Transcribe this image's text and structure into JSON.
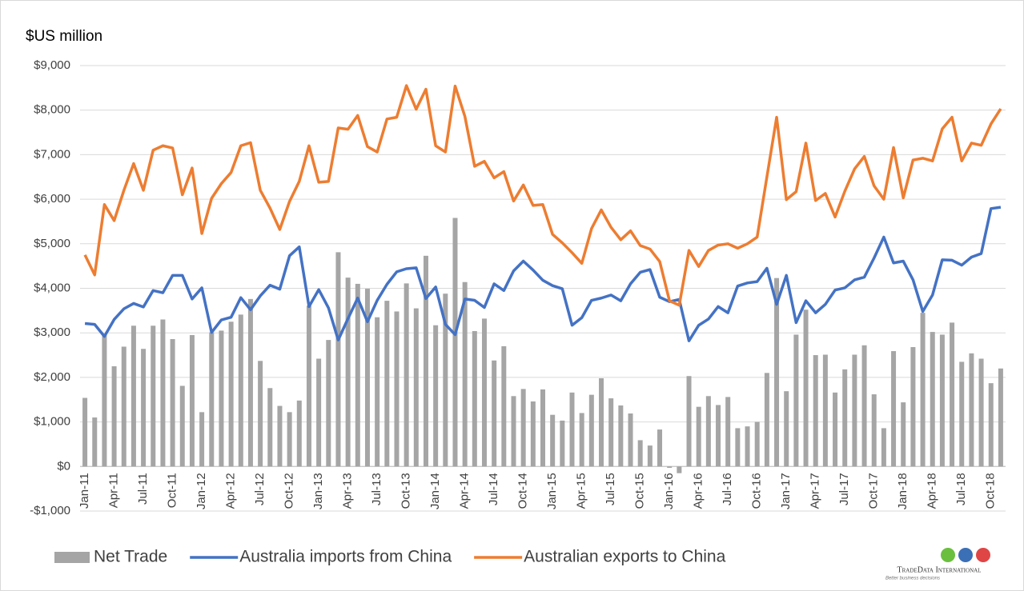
{
  "chart_data": {
    "type": "combo",
    "y_axis_label": "$US million",
    "categories": [
      "Jan-11",
      null,
      null,
      "Apr-11",
      null,
      null,
      "Jul-11",
      null,
      null,
      "Oct-11",
      null,
      null,
      "Jan-12",
      null,
      null,
      "Apr-12",
      null,
      null,
      "Jul-12",
      null,
      null,
      "Oct-12",
      null,
      null,
      "Jan-13",
      null,
      null,
      "Apr-13",
      null,
      null,
      "Jul-13",
      null,
      null,
      "Oct-13",
      null,
      null,
      "Jan-14",
      null,
      null,
      "Apr-14",
      null,
      null,
      "Jul-14",
      null,
      null,
      "Oct-14",
      null,
      null,
      "Jan-15",
      null,
      null,
      "Apr-15",
      null,
      null,
      "Jul-15",
      null,
      null,
      "Oct-15",
      null,
      null,
      "Jan-16",
      null,
      null,
      "Apr-16",
      null,
      null,
      "Jul-16",
      null,
      null,
      "Oct-16",
      null,
      null,
      "Jan-17",
      null,
      null,
      "Apr-17",
      null,
      null,
      "Jul-17",
      null,
      null,
      "Oct-17",
      null,
      null,
      "Jan-18",
      null,
      null,
      "Apr-18",
      null,
      null,
      "Jul-18",
      null,
      null,
      "Oct-18",
      null
    ],
    "series": [
      {
        "name": "Net Trade",
        "type": "bar",
        "color": "#a5a5a5",
        "values": [
          1540,
          1100,
          2950,
          2250,
          2690,
          3160,
          2640,
          3160,
          3300,
          2860,
          1810,
          2950,
          1220,
          3010,
          3050,
          3250,
          3410,
          3760,
          2370,
          1760,
          1360,
          1220,
          1480,
          3610,
          2420,
          2840,
          4810,
          4240,
          4100,
          3990,
          3350,
          3720,
          3480,
          4110,
          3550,
          4730,
          3170,
          3880,
          5580,
          4140,
          3040,
          3320,
          2380,
          2700,
          1580,
          1740,
          1460,
          1730,
          1160,
          1030,
          1660,
          1200,
          1610,
          1980,
          1530,
          1370,
          1190,
          590,
          470,
          830,
          -30,
          -150,
          2030,
          1340,
          1580,
          1380,
          1560,
          860,
          900,
          1000,
          2100,
          4230,
          1690,
          2960,
          3520,
          2500,
          2510,
          1660,
          2180,
          2510,
          2720,
          1620,
          860,
          2590,
          1440,
          2680,
          3450,
          3020,
          2960,
          3230,
          2350,
          2540,
          2420,
          1870,
          2200
        ]
      },
      {
        "name": "Australia imports from China",
        "type": "line",
        "color": "#4472c4",
        "values": [
          3210,
          3190,
          2920,
          3300,
          3540,
          3660,
          3580,
          3950,
          3900,
          4290,
          4290,
          3760,
          4010,
          3010,
          3290,
          3350,
          3790,
          3520,
          3830,
          4070,
          3980,
          4730,
          4930,
          3590,
          3970,
          3560,
          2840,
          3320,
          3780,
          3250,
          3730,
          4090,
          4370,
          4440,
          4460,
          3770,
          4030,
          3190,
          2960,
          3760,
          3730,
          3570,
          4100,
          3950,
          4390,
          4610,
          4410,
          4180,
          4060,
          3990,
          3170,
          3340,
          3730,
          3780,
          3850,
          3720,
          4100,
          4360,
          4420,
          3800,
          3700,
          3750,
          2820,
          3170,
          3310,
          3590,
          3450,
          4050,
          4120,
          4150,
          4450,
          3640,
          4290,
          3230,
          3720,
          3450,
          3640,
          3960,
          4010,
          4190,
          4250,
          4680,
          5150,
          4570,
          4610,
          4190,
          3480,
          3850,
          4640,
          4630,
          4520,
          4700,
          4780,
          5790,
          5820
        ]
      },
      {
        "name": "Australian exports to China",
        "type": "line",
        "color": "#ed7d31",
        "values": [
          4750,
          4300,
          5880,
          5520,
          6200,
          6800,
          6200,
          7100,
          7200,
          7150,
          6100,
          6700,
          5230,
          6020,
          6350,
          6600,
          7200,
          7270,
          6200,
          5800,
          5320,
          5950,
          6400,
          7200,
          6380,
          6400,
          7600,
          7570,
          7880,
          7180,
          7060,
          7800,
          7840,
          8550,
          8020,
          8470,
          7200,
          7060,
          8540,
          7860,
          6740,
          6850,
          6480,
          6620,
          5960,
          6320,
          5860,
          5880,
          5210,
          5020,
          4800,
          4560,
          5340,
          5760,
          5370,
          5090,
          5290,
          4960,
          4880,
          4600,
          3720,
          3620,
          4850,
          4490,
          4850,
          4970,
          5000,
          4900,
          5000,
          5150,
          6500,
          7840,
          5990,
          6170,
          7260,
          5970,
          6130,
          5600,
          6180,
          6680,
          6960,
          6300,
          6000,
          7160,
          6030,
          6880,
          6920,
          6860,
          7580,
          7840,
          6860,
          7260,
          7210,
          7690,
          8030
        ]
      }
    ],
    "ylim": [
      -1000,
      9000
    ],
    "yticks": [
      {
        "value": -1000,
        "label": "-$1,000"
      },
      {
        "value": 0,
        "label": "$0"
      },
      {
        "value": 1000,
        "label": "$1,000"
      },
      {
        "value": 2000,
        "label": "$2,000"
      },
      {
        "value": 3000,
        "label": "$3,000"
      },
      {
        "value": 4000,
        "label": "$4,000"
      },
      {
        "value": 5000,
        "label": "$5,000"
      },
      {
        "value": 6000,
        "label": "$6,000"
      },
      {
        "value": 7000,
        "label": "$7,000"
      },
      {
        "value": 8000,
        "label": "$8,000"
      },
      {
        "value": 9000,
        "label": "$9,000"
      }
    ],
    "grid": true,
    "legend": "bottom"
  },
  "logo": {
    "name": "TradeData International",
    "tagline": "Better business decisions"
  }
}
